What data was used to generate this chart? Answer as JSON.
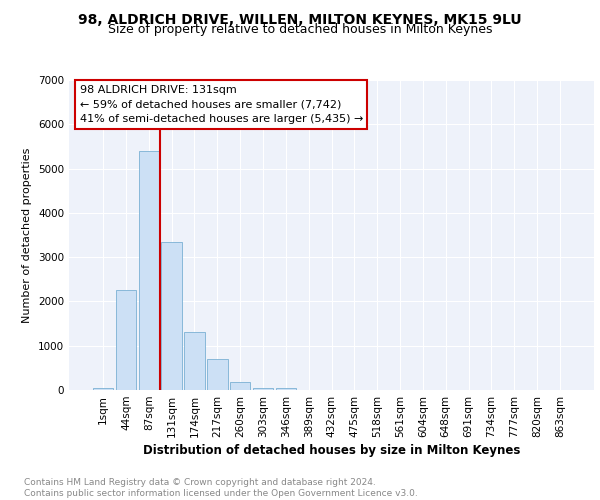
{
  "title1": "98, ALDRICH DRIVE, WILLEN, MILTON KEYNES, MK15 9LU",
  "title2": "Size of property relative to detached houses in Milton Keynes",
  "xlabel": "Distribution of detached houses by size in Milton Keynes",
  "ylabel": "Number of detached properties",
  "footnote": "Contains HM Land Registry data © Crown copyright and database right 2024.\nContains public sector information licensed under the Open Government Licence v3.0.",
  "bar_labels": [
    "1sqm",
    "44sqm",
    "87sqm",
    "131sqm",
    "174sqm",
    "217sqm",
    "260sqm",
    "303sqm",
    "346sqm",
    "389sqm",
    "432sqm",
    "475sqm",
    "518sqm",
    "561sqm",
    "604sqm",
    "648sqm",
    "691sqm",
    "734sqm",
    "777sqm",
    "820sqm",
    "863sqm"
  ],
  "bar_values": [
    50,
    2250,
    5400,
    3350,
    1300,
    700,
    175,
    50,
    50,
    0,
    0,
    0,
    0,
    0,
    0,
    0,
    0,
    0,
    0,
    0,
    0
  ],
  "bar_color": "#cce0f5",
  "bar_edge_color": "#7ab0d4",
  "ylim": [
    0,
    7000
  ],
  "yticks": [
    0,
    1000,
    2000,
    3000,
    4000,
    5000,
    6000,
    7000
  ],
  "vline_x": 2.5,
  "vline_color": "#cc0000",
  "annotation_text": "98 ALDRICH DRIVE: 131sqm\n← 59% of detached houses are smaller (7,742)\n41% of semi-detached houses are larger (5,435) →",
  "box_edge_color": "#cc0000",
  "background_color": "#eef2fa",
  "grid_color": "#ffffff",
  "title1_fontsize": 10,
  "title2_fontsize": 9,
  "xlabel_fontsize": 8.5,
  "ylabel_fontsize": 8,
  "tick_fontsize": 7.5,
  "annotation_fontsize": 8,
  "footnote_fontsize": 6.5
}
